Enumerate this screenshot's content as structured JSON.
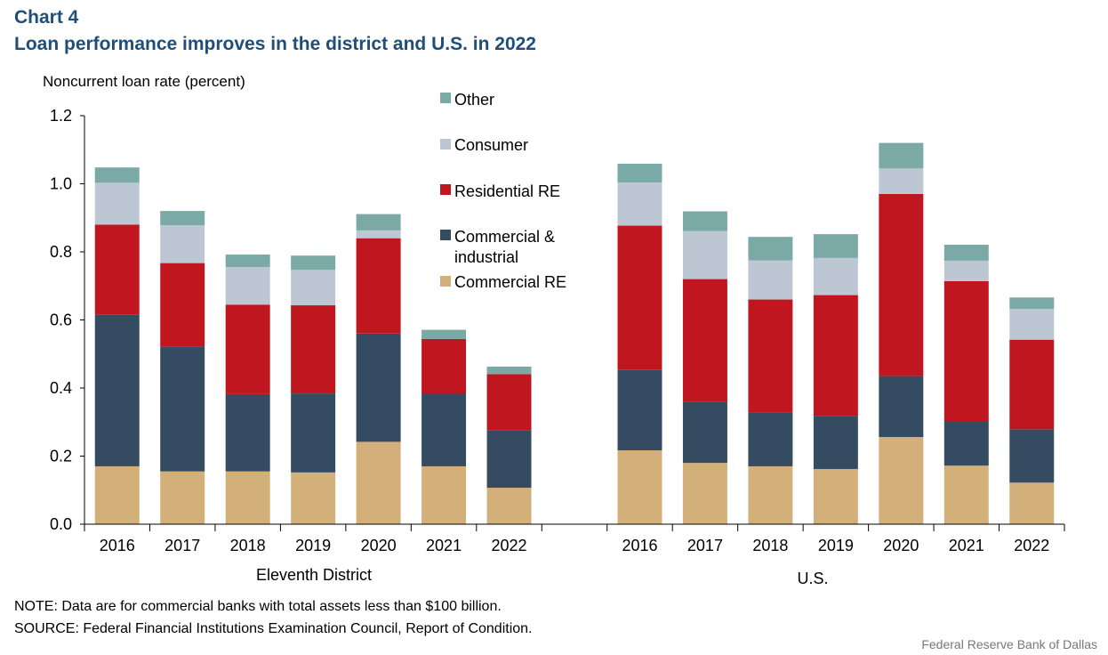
{
  "header": {
    "chart_label": "Chart 4",
    "title": "Loan performance improves in the district and U.S. in 2022"
  },
  "footer": {
    "note": "NOTE: Data are for commercial banks with total assets less than $100 billion.",
    "source": "SOURCE: Federal Financial Institutions Examination Council, Report of Condition.",
    "credit": "Federal Reserve Bank of Dallas"
  },
  "colors": {
    "commercial_re": "#d3b07a",
    "commercial_industrial": "#344b62",
    "residential_re": "#c0161f",
    "consumer": "#bcc7d3",
    "other": "#7ba9a6",
    "title": "#1f4e79"
  },
  "chart_data": {
    "type": "bar",
    "stacked": true,
    "title": "Loan performance improves in the district and U.S. in 2022",
    "ylabel": "Noncurrent loan rate (percent)",
    "xlabel": "",
    "ylim": [
      0,
      1.2
    ],
    "yticks": [
      "0.0",
      "0.2",
      "0.4",
      "0.6",
      "0.8",
      "1.0",
      "1.2"
    ],
    "grid": false,
    "legend_position": "top-center",
    "groups": [
      {
        "label": "Eleventh District",
        "categories": [
          "2016",
          "2017",
          "2018",
          "2019",
          "2020",
          "2021",
          "2022"
        ]
      },
      {
        "label": "U.S.",
        "categories": [
          "2016",
          "2017",
          "2018",
          "2019",
          "2020",
          "2021",
          "2022"
        ]
      }
    ],
    "series": [
      {
        "name": "Commercial RE",
        "key": "commercial_re",
        "values": [
          0.17,
          0.155,
          0.155,
          0.152,
          0.242,
          0.17,
          0.107,
          0.217,
          0.18,
          0.17,
          0.162,
          0.256,
          0.172,
          0.122
        ]
      },
      {
        "name": "Commercial & industrial",
        "key": "commercial_industrial",
        "values": [
          0.445,
          0.367,
          0.227,
          0.232,
          0.318,
          0.213,
          0.168,
          0.236,
          0.179,
          0.157,
          0.156,
          0.179,
          0.13,
          0.157
        ]
      },
      {
        "name": "Residential RE",
        "key": "residential_re",
        "values": [
          0.265,
          0.245,
          0.263,
          0.259,
          0.28,
          0.161,
          0.166,
          0.424,
          0.361,
          0.333,
          0.355,
          0.535,
          0.412,
          0.263
        ]
      },
      {
        "name": "Consumer",
        "key": "consumer",
        "values": [
          0.123,
          0.111,
          0.11,
          0.104,
          0.023,
          0.0,
          0.0,
          0.127,
          0.141,
          0.115,
          0.109,
          0.075,
          0.06,
          0.09
        ]
      },
      {
        "name": "Other",
        "key": "other",
        "values": [
          0.045,
          0.042,
          0.037,
          0.042,
          0.048,
          0.027,
          0.022,
          0.055,
          0.058,
          0.069,
          0.07,
          0.075,
          0.047,
          0.034
        ]
      }
    ],
    "legend": [
      "Other",
      "Consumer",
      "Residential RE",
      "Commercial &",
      "industrial",
      "Commercial RE"
    ]
  }
}
